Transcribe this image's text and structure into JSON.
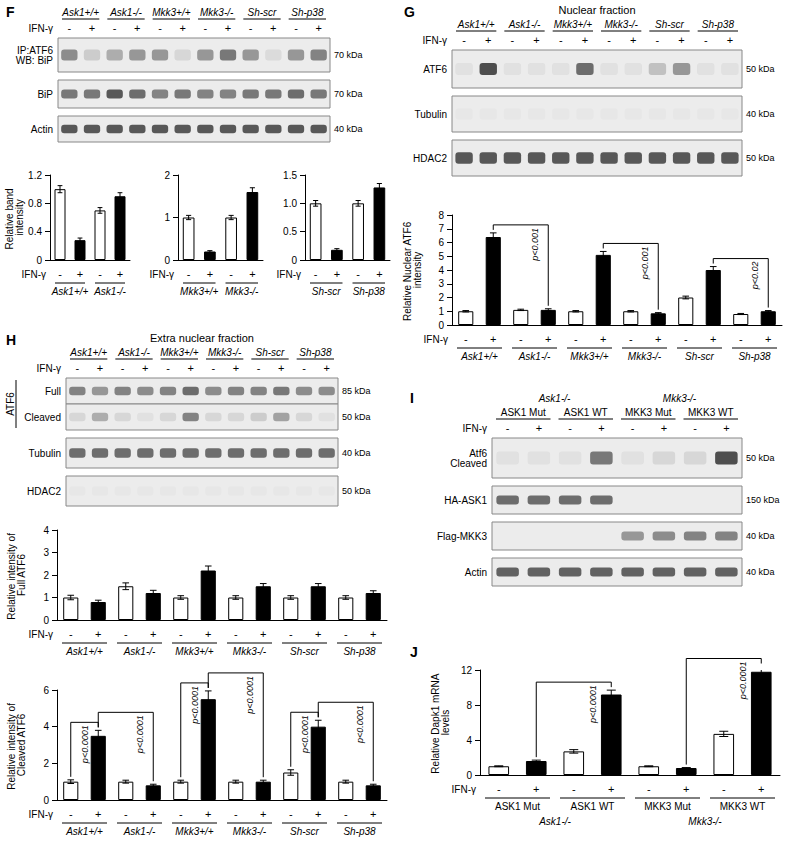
{
  "chart_data": [
    {
      "type": "bar",
      "ylabel": "Relative band intensity",
      "xlabel": "IFN-γ",
      "categories": [
        "-",
        "+",
        "-",
        "+"
      ],
      "groups": [
        "Ask1+/+",
        "Ask1-/-"
      ],
      "values": [
        1.0,
        0.28,
        0.7,
        0.9
      ],
      "errors": [
        0.05,
        0.03,
        0.04,
        0.05
      ],
      "colors": [
        "#ffffff",
        "#000000",
        "#ffffff",
        "#000000"
      ],
      "ylim": [
        0,
        1.2
      ],
      "yticks": [
        0,
        0.4,
        0.8,
        1.2
      ],
      "grid": false
    },
    {
      "type": "bar",
      "xlabel": "IFN-γ",
      "categories": [
        "-",
        "+",
        "-",
        "+"
      ],
      "groups": [
        "Mkk3+/+",
        "Mkk3-/-"
      ],
      "values": [
        1.0,
        0.2,
        1.0,
        1.6
      ],
      "errors": [
        0.05,
        0.02,
        0.05,
        0.1
      ],
      "colors": [
        "#ffffff",
        "#000000",
        "#ffffff",
        "#000000"
      ],
      "ylim": [
        0,
        2
      ],
      "yticks": [
        0,
        1,
        2
      ],
      "grid": false
    },
    {
      "type": "bar",
      "xlabel": "IFN-γ",
      "categories": [
        "-",
        "+",
        "-",
        "+"
      ],
      "groups": [
        "Sh-scr",
        "Sh-p38"
      ],
      "values": [
        1.0,
        0.18,
        1.0,
        1.28
      ],
      "errors": [
        0.05,
        0.02,
        0.05,
        0.07
      ],
      "colors": [
        "#ffffff",
        "#000000",
        "#ffffff",
        "#000000"
      ],
      "ylim": [
        0,
        1.5
      ],
      "yticks": [
        0,
        0.5,
        {
          "value": 1,
          "label": "1.0"
        },
        1.5
      ],
      "grid": false
    },
    {
      "type": "bar",
      "ylabel": "Relative Nuclear ATF6 intensity",
      "xlabel": "IFN-γ",
      "categories": [
        "-",
        "+",
        "-",
        "+",
        "-",
        "+",
        "-",
        "+",
        "-",
        "+",
        "-",
        "+"
      ],
      "groups": [
        "Ask1+/+",
        "Ask1-/-",
        "Mkk3+/+",
        "Mkk3-/-",
        "Sh-scr",
        "Sh-p38"
      ],
      "values": [
        1.0,
        6.4,
        1.1,
        1.1,
        1.0,
        5.1,
        1.0,
        0.85,
        2.0,
        4.0,
        0.8,
        1.0
      ],
      "errors": [
        0.05,
        0.3,
        0.05,
        0.08,
        0.05,
        0.25,
        0.05,
        0.05,
        0.1,
        0.25,
        0.04,
        0.05
      ],
      "colors": [
        "#ffffff",
        "#000000",
        "#ffffff",
        "#000000",
        "#ffffff",
        "#000000",
        "#ffffff",
        "#000000",
        "#ffffff",
        "#000000",
        "#ffffff",
        "#000000"
      ],
      "ylim": [
        0,
        8
      ],
      "yticks": [
        0,
        1,
        2,
        3,
        4,
        5,
        6,
        7,
        8
      ],
      "grid": false,
      "annotations": [
        {
          "text": "p<0.001",
          "between": [
            1,
            3
          ]
        },
        {
          "text": "p<0.001",
          "between": [
            5,
            7
          ]
        },
        {
          "text": "p<0.02",
          "between": [
            9,
            11
          ]
        }
      ]
    },
    {
      "type": "bar",
      "ylabel": "Relative intensity of Full ATF6",
      "xlabel": "IFN-γ",
      "categories": [
        "-",
        "+",
        "-",
        "+",
        "-",
        "+",
        "-",
        "+",
        "-",
        "+",
        "-",
        "+"
      ],
      "groups": [
        "Ask1+/+",
        "Ask1-/-",
        "Mkk3+/+",
        "Mkk3-/-",
        "Sh-scr",
        "Sh-p38"
      ],
      "values": [
        1.0,
        0.8,
        1.5,
        1.2,
        1.0,
        2.2,
        1.0,
        1.5,
        1.0,
        1.5,
        1.0,
        1.2
      ],
      "errors": [
        0.1,
        0.08,
        0.15,
        0.12,
        0.08,
        0.2,
        0.08,
        0.12,
        0.08,
        0.12,
        0.08,
        0.1
      ],
      "colors": [
        "#ffffff",
        "#000000",
        "#ffffff",
        "#000000",
        "#ffffff",
        "#000000",
        "#ffffff",
        "#000000",
        "#ffffff",
        "#000000",
        "#ffffff",
        "#000000"
      ],
      "ylim": [
        0,
        4
      ],
      "yticks": [
        0,
        1,
        2,
        3,
        4
      ],
      "grid": false
    },
    {
      "type": "bar",
      "ylabel": "Relative intensity of Cleaved ATF6",
      "xlabel": "IFN-γ",
      "categories": [
        "-",
        "+",
        "-",
        "+",
        "-",
        "+",
        "-",
        "+",
        "-",
        "+",
        "-",
        "+"
      ],
      "groups": [
        "Ask1+/+",
        "Ask1-/-",
        "Mkk3+/+",
        "Mkk3-/-",
        "Sh-scr",
        "Sh-p38"
      ],
      "values": [
        1.0,
        3.5,
        1.0,
        0.8,
        1.0,
        5.5,
        1.0,
        1.0,
        1.5,
        4.0,
        1.0,
        0.8
      ],
      "errors": [
        0.1,
        0.3,
        0.08,
        0.06,
        0.08,
        0.45,
        0.08,
        0.08,
        0.15,
        0.35,
        0.08,
        0.06
      ],
      "colors": [
        "#ffffff",
        "#000000",
        "#ffffff",
        "#000000",
        "#ffffff",
        "#000000",
        "#ffffff",
        "#000000",
        "#ffffff",
        "#000000",
        "#ffffff",
        "#000000"
      ],
      "ylim": [
        0,
        6
      ],
      "yticks": [
        0,
        2,
        4,
        6
      ],
      "grid": false,
      "annotations": [
        {
          "text": "p<0.0001",
          "between": [
            0,
            1
          ]
        },
        {
          "text": "p<0.0001",
          "between": [
            1,
            3
          ]
        },
        {
          "text": "p<0.0001",
          "between": [
            4,
            5
          ]
        },
        {
          "text": "p<0.0001",
          "between": [
            5,
            7
          ]
        },
        {
          "text": "p<0.0001",
          "between": [
            8,
            9
          ]
        },
        {
          "text": "p<0.0001",
          "between": [
            9,
            11
          ]
        }
      ]
    },
    {
      "type": "bar",
      "panel": "J",
      "ylabel": "Relative Dapk1 mRNA levels",
      "xlabel": "IFN-γ",
      "categories": [
        "-",
        "+",
        "-",
        "+",
        "-",
        "+",
        "-",
        "+"
      ],
      "groups": [
        "ASK1 Mut",
        "ASK1 WT",
        "MKK3 Mut",
        "MKK3 WT"
      ],
      "supergroups": [
        "Ask1-/-",
        "Mkk3-/-"
      ],
      "values": [
        1.0,
        1.6,
        2.7,
        9.2,
        1.0,
        0.8,
        4.7,
        11.8
      ],
      "errors": [
        0.05,
        0.1,
        0.2,
        0.5,
        0.05,
        0.05,
        0.3,
        0.6
      ],
      "colors": [
        "#ffffff",
        "#000000",
        "#ffffff",
        "#000000",
        "#ffffff",
        "#000000",
        "#ffffff",
        "#000000"
      ],
      "ylim": [
        0,
        12
      ],
      "yticks": [
        0,
        4,
        8,
        12
      ],
      "grid": false,
      "annotations": [
        {
          "text": "p<0.0001",
          "between": [
            1,
            3
          ]
        },
        {
          "text": "p<0.0001",
          "between": [
            5,
            7
          ]
        }
      ]
    }
  ],
  "blots": [
    {
      "panel": "F",
      "treatment": "IFN-γ",
      "groups": [
        "Ask1+/+",
        "Ask1-/-",
        "Mkk3+/+",
        "Mkk3-/-",
        "Sh-scr",
        "Sh-p38"
      ],
      "lanes": [
        "-",
        "+",
        "-",
        "+",
        "-",
        "+",
        "-",
        "+",
        "-",
        "+",
        "-",
        "+"
      ],
      "rows": [
        {
          "label": "IP:ATF6\nWB: BiP",
          "kda": "70 kDa",
          "bands": [
            0.45,
            0.15,
            0.3,
            0.4,
            0.4,
            0.1,
            0.4,
            0.55,
            0.4,
            0.08,
            0.4,
            0.5
          ]
        },
        {
          "label": "BiP",
          "kda": "70 kDa",
          "bands": [
            0.55,
            0.55,
            0.7,
            0.6,
            0.5,
            0.55,
            0.5,
            0.5,
            0.55,
            0.55,
            0.6,
            0.55
          ]
        },
        {
          "label": "Actin",
          "kda": "40 kDa",
          "bands": [
            0.7,
            0.7,
            0.7,
            0.7,
            0.7,
            0.7,
            0.7,
            0.7,
            0.7,
            0.7,
            0.7,
            0.7
          ]
        }
      ]
    },
    {
      "panel": "G",
      "title": "Nuclear fraction",
      "treatment": "IFN-γ",
      "groups": [
        "Ask1+/+",
        "Ask1-/-",
        "Mkk3+/+",
        "Mkk3-/-",
        "Sh-scr",
        "Sh-p38"
      ],
      "lanes": [
        "-",
        "+",
        "-",
        "+",
        "-",
        "+",
        "-",
        "+",
        "-",
        "+",
        "-",
        "+"
      ],
      "rows": [
        {
          "label": "ATF6",
          "kda": "50 kDa",
          "bands": [
            0.05,
            0.75,
            0.05,
            0.05,
            0.05,
            0.6,
            0.05,
            0.05,
            0.2,
            0.4,
            0.05,
            0.05
          ]
        },
        {
          "label": "Tubulin",
          "kda": "40 kDa",
          "bands": [
            0.02,
            0.02,
            0.02,
            0.02,
            0.02,
            0.02,
            0.02,
            0.02,
            0.02,
            0.02,
            0.02,
            0.02
          ]
        },
        {
          "label": "HDAC2",
          "kda": "50 kDa",
          "bands": [
            0.7,
            0.7,
            0.7,
            0.7,
            0.7,
            0.7,
            0.7,
            0.7,
            0.7,
            0.7,
            0.7,
            0.7
          ]
        }
      ]
    },
    {
      "panel": "H",
      "title": "Extra nuclear fraction",
      "treatment": "IFN-γ",
      "groups": [
        "Ask1+/+",
        "Ask1-/-",
        "Mkk3+/+",
        "Mkk3-/-",
        "Sh-scr",
        "Sh-p38"
      ],
      "lanes": [
        "-",
        "+",
        "-",
        "+",
        "-",
        "+",
        "-",
        "+",
        "-",
        "+",
        "-",
        "+"
      ],
      "rows": [
        {
          "label": "Full",
          "group": "ATF6",
          "kda": "85 kDa",
          "bands": [
            0.5,
            0.4,
            0.5,
            0.45,
            0.5,
            0.6,
            0.45,
            0.5,
            0.5,
            0.55,
            0.45,
            0.45
          ]
        },
        {
          "label": "Cleaved",
          "group": "ATF6",
          "kda": "50 kDa",
          "bands": [
            0.1,
            0.3,
            0.1,
            0.05,
            0.1,
            0.5,
            0.1,
            0.1,
            0.15,
            0.35,
            0.1,
            0.05
          ]
        },
        {
          "label": "Tubulin",
          "kda": "40 kDa",
          "bands": [
            0.6,
            0.6,
            0.6,
            0.6,
            0.6,
            0.6,
            0.6,
            0.6,
            0.6,
            0.6,
            0.6,
            0.6
          ]
        },
        {
          "label": "HDAC2",
          "kda": "50 kDa",
          "bands": [
            0.02,
            0.02,
            0.02,
            0.02,
            0.02,
            0.02,
            0.02,
            0.02,
            0.02,
            0.02,
            0.02,
            0.02
          ]
        }
      ]
    },
    {
      "panel": "I",
      "treatment": "IFN-γ",
      "supergroups": [
        "Ask1-/-",
        "Mkk3-/-"
      ],
      "groups": [
        "ASK1 Mut",
        "ASK1 WT",
        "MKK3 Mut",
        "MKK3 WT"
      ],
      "lanes": [
        "-",
        "+",
        "-",
        "+",
        "-",
        "+",
        "-",
        "+"
      ],
      "rows": [
        {
          "label": "Atf6\nCleaved",
          "kda": "50 kDa",
          "bands": [
            0.05,
            0.05,
            0.05,
            0.55,
            0.05,
            0.1,
            0.1,
            0.75
          ]
        },
        {
          "label": "HA-ASK1",
          "kda": "150 kDa",
          "bands": [
            0.6,
            0.6,
            0.6,
            0.6,
            0,
            0,
            0,
            0
          ]
        },
        {
          "label": "Flag-MKK3",
          "kda": "40 kDa",
          "bands": [
            0,
            0,
            0,
            0,
            0.4,
            0.45,
            0.5,
            0.5
          ]
        },
        {
          "label": "Actin",
          "kda": "40 kDa",
          "bands": [
            0.65,
            0.65,
            0.65,
            0.65,
            0.65,
            0.65,
            0.65,
            0.65
          ]
        }
      ]
    }
  ]
}
